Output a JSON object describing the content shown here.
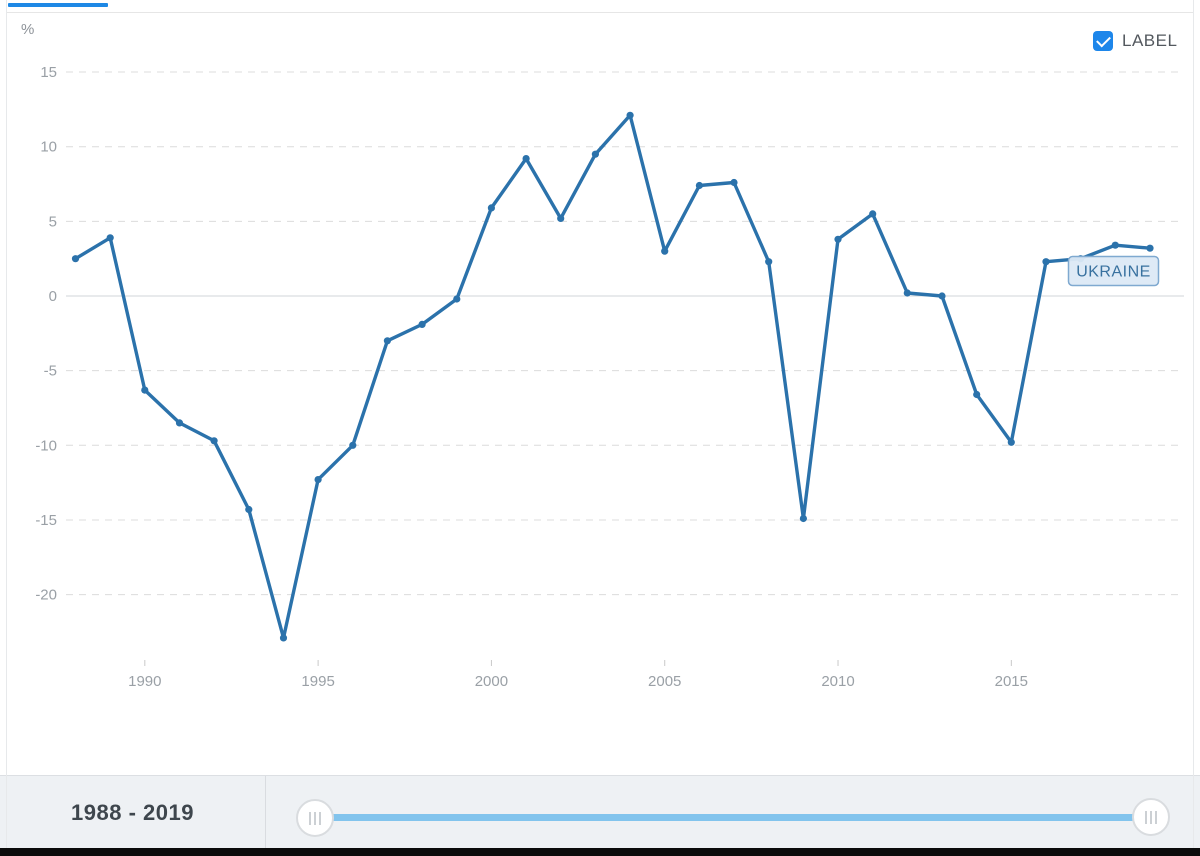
{
  "chart_header": {
    "unit_label": "%",
    "legend_checkbox_label": "LABEL",
    "legend_checkbox_checked": true
  },
  "series_flag_label": "UKRAINE",
  "footer": {
    "range_label": "1988 - 2019"
  },
  "colors": {
    "line": "#2b72ab",
    "accent_blue": "#1e88e5",
    "checkbox_blue": "#1d86ea",
    "slider_track": "#82c4ed",
    "label_box_fill": "#dce9f6",
    "label_box_border": "#7fa9d0",
    "label_box_text": "#38719f",
    "axis_text": "#9aa0a6",
    "tick_mark": "#c9c9c9",
    "grid": "#dcdcdc",
    "zero_line": "#d2d5d8"
  },
  "chart_data": {
    "type": "line",
    "title": "",
    "xlabel": "",
    "ylabel": "%",
    "x": [
      1988,
      1989,
      1990,
      1991,
      1992,
      1993,
      1994,
      1995,
      1996,
      1997,
      1998,
      1999,
      2000,
      2001,
      2002,
      2003,
      2004,
      2005,
      2006,
      2007,
      2008,
      2009,
      2010,
      2011,
      2012,
      2013,
      2014,
      2015,
      2016,
      2017,
      2018,
      2019
    ],
    "series": [
      {
        "name": "UKRAINE",
        "values": [
          2.5,
          3.9,
          -6.3,
          -8.5,
          -9.7,
          -14.3,
          -22.9,
          -12.3,
          -10.0,
          -3.0,
          -1.9,
          -0.2,
          5.9,
          9.2,
          5.2,
          9.5,
          12.1,
          3.0,
          7.4,
          7.6,
          2.3,
          -14.9,
          3.8,
          5.5,
          0.2,
          0.0,
          -6.6,
          -9.8,
          2.3,
          2.5,
          3.4,
          3.2
        ]
      }
    ],
    "yticks": [
      15,
      10,
      5,
      0,
      -5,
      -10,
      -15,
      -20
    ],
    "xticks": [
      1990,
      1995,
      2000,
      2005,
      2010,
      2015
    ],
    "ylim": [
      -24,
      17.5
    ],
    "xlim": [
      1987.5,
      2019.5
    ],
    "grid": "horizontal-dashed",
    "legend_position": "top-right",
    "marker": "dot"
  }
}
